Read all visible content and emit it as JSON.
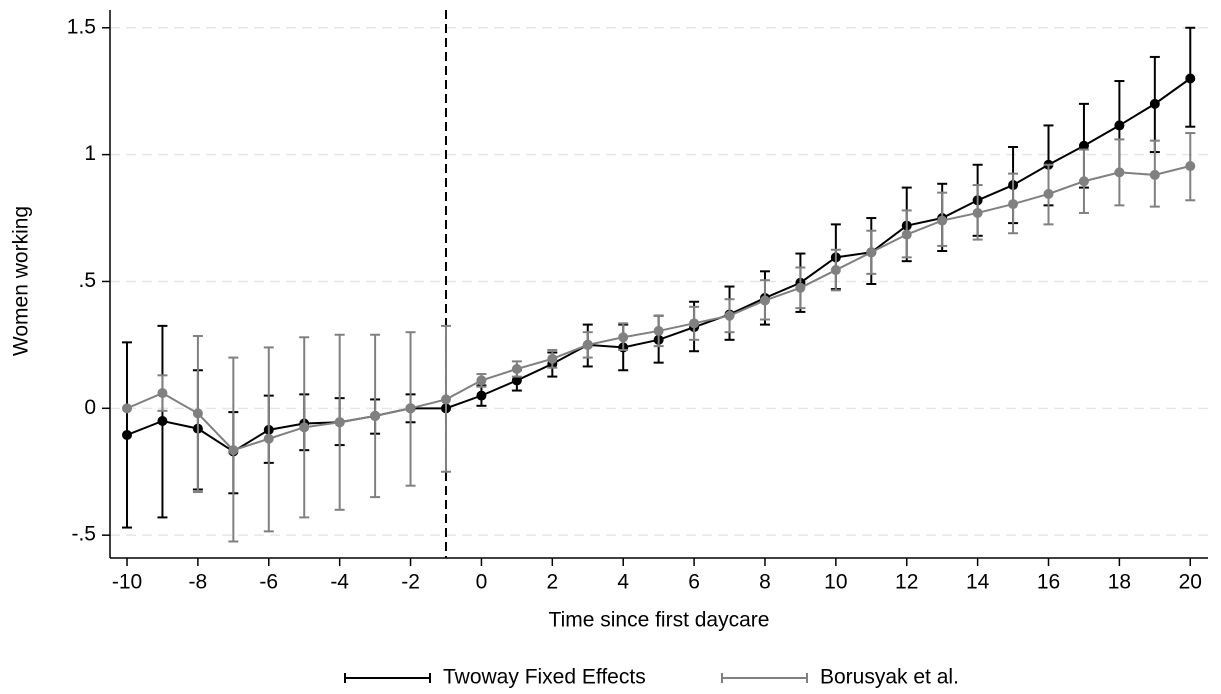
{
  "chart_data": {
    "type": "line",
    "x_label": "Time since first daycare",
    "y_label": "Women working",
    "x": [
      -10,
      -9,
      -8,
      -7,
      -6,
      -5,
      -4,
      -3,
      -2,
      -1,
      0,
      1,
      2,
      3,
      4,
      5,
      6,
      7,
      8,
      9,
      10,
      11,
      12,
      13,
      14,
      15,
      16,
      17,
      18,
      19,
      20
    ],
    "series": [
      {
        "name": "Twoway Fixed Effects",
        "color": "#000000",
        "values": [
          -0.105,
          -0.05,
          -0.08,
          -0.17,
          -0.085,
          -0.06,
          -0.055,
          -0.03,
          0,
          0,
          0.05,
          0.11,
          0.175,
          0.25,
          0.24,
          0.27,
          0.32,
          0.37,
          0.435,
          0.495,
          0.595,
          0.615,
          0.72,
          0.75,
          0.82,
          0.88,
          0.96,
          1.035,
          1.115,
          1.2,
          1.3
        ],
        "ci_low": [
          -0.47,
          -0.43,
          -0.32,
          -0.335,
          -0.215,
          -0.165,
          -0.145,
          -0.1,
          -0.055,
          null,
          0.01,
          0.07,
          0.125,
          0.165,
          0.15,
          0.18,
          0.225,
          0.27,
          0.33,
          0.38,
          0.47,
          0.49,
          0.58,
          0.62,
          0.68,
          0.73,
          0.8,
          0.87,
          0.93,
          1.01,
          1.11
        ],
        "ci_high": [
          0.26,
          0.325,
          0.15,
          -0.015,
          0.05,
          0.055,
          0.04,
          0.035,
          0.055,
          null,
          0.09,
          0.15,
          0.22,
          0.33,
          0.33,
          0.365,
          0.42,
          0.48,
          0.54,
          0.61,
          0.725,
          0.75,
          0.87,
          0.885,
          0.96,
          1.03,
          1.115,
          1.2,
          1.29,
          1.385,
          1.5
        ]
      },
      {
        "name": "Borusyak et al.",
        "color": "#808080",
        "values": [
          0,
          0.06,
          -0.02,
          -0.165,
          -0.12,
          -0.075,
          -0.055,
          -0.03,
          0,
          0.035,
          0.11,
          0.155,
          0.195,
          0.25,
          0.28,
          0.305,
          0.335,
          0.365,
          0.425,
          0.475,
          0.545,
          0.615,
          0.685,
          0.74,
          0.77,
          0.805,
          0.845,
          0.895,
          0.93,
          0.92,
          0.955
        ],
        "ci_low": [
          null,
          -0.01,
          -0.33,
          -0.525,
          -0.485,
          -0.43,
          -0.4,
          -0.35,
          -0.305,
          -0.25,
          0.085,
          0.125,
          0.16,
          0.2,
          0.23,
          0.245,
          0.27,
          0.3,
          0.35,
          0.395,
          0.465,
          0.53,
          0.595,
          0.64,
          0.665,
          0.69,
          0.725,
          0.77,
          0.8,
          0.795,
          0.82
        ],
        "ci_high": [
          null,
          0.13,
          0.285,
          0.2,
          0.24,
          0.28,
          0.29,
          0.29,
          0.3,
          0.325,
          0.135,
          0.185,
          0.23,
          0.3,
          0.335,
          0.365,
          0.4,
          0.43,
          0.505,
          0.555,
          0.625,
          0.7,
          0.78,
          0.85,
          0.88,
          0.925,
          0.96,
          1.02,
          1.06,
          1.055,
          1.085
        ]
      }
    ],
    "xlim": [
      -10.48,
      20.5
    ],
    "ylim": [
      -0.59,
      1.57
    ],
    "xticks": [
      -10,
      -8,
      -6,
      -4,
      -2,
      0,
      2,
      4,
      6,
      8,
      10,
      12,
      14,
      16,
      18,
      20
    ],
    "yticks": [
      {
        "value": -0.5,
        "label": "-.5"
      },
      0,
      {
        "value": 0.5,
        "label": ".5"
      },
      1,
      1.5
    ],
    "vline": -1,
    "grid": true,
    "legend": "bottom"
  }
}
